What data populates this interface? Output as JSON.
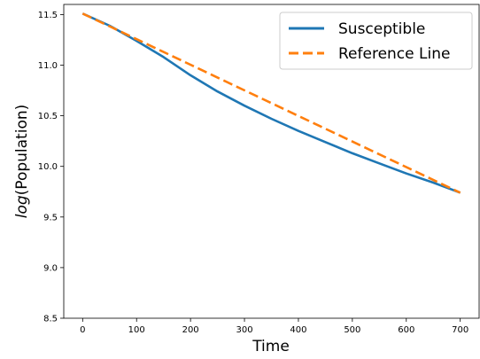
{
  "chart_data": {
    "type": "line",
    "xlabel": "Time",
    "ylabel_italic": "log",
    "ylabel_rest": "(Population)",
    "xlim": [
      -35,
      735
    ],
    "ylim": [
      8.5,
      11.6
    ],
    "xticks": [
      0,
      100,
      200,
      300,
      400,
      500,
      600,
      700
    ],
    "yticks": [
      8.5,
      9.0,
      9.5,
      10.0,
      10.5,
      11.0,
      11.5
    ],
    "ytick_labels": [
      "8.5",
      "9.0",
      "9.5",
      "10.0",
      "10.5",
      "11.0",
      "11.5"
    ],
    "legend_position": "upper-right",
    "series": [
      {
        "name": "Susceptible",
        "style": "solid",
        "color": "#1f77b4",
        "x": [
          0,
          50,
          100,
          150,
          200,
          250,
          300,
          350,
          400,
          450,
          500,
          550,
          600,
          650,
          700
        ],
        "y": [
          11.51,
          11.39,
          11.24,
          11.08,
          10.9,
          10.74,
          10.6,
          10.47,
          10.35,
          10.24,
          10.13,
          10.03,
          9.93,
          9.84,
          9.74
        ]
      },
      {
        "name": "Reference Line",
        "style": "dashed",
        "color": "#ff7f0e",
        "x": [
          0,
          700
        ],
        "y": [
          11.51,
          9.74
        ]
      }
    ]
  }
}
